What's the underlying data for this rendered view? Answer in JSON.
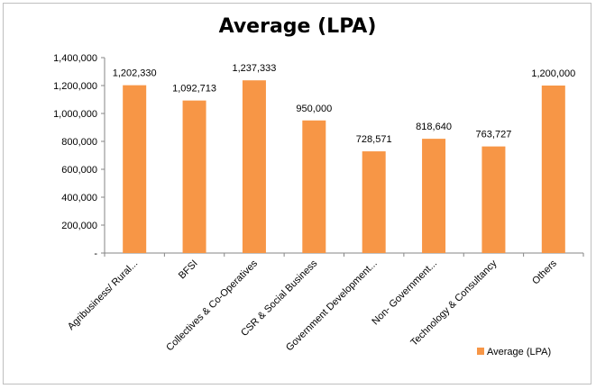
{
  "chart_data": {
    "type": "bar",
    "title": "Average (LPA)",
    "categories": [
      "Agribusiness/ Rural...",
      "BFSI",
      "Collectives & Co-Operatives",
      "CSR & Social Business",
      "Government Development...",
      "Non- Government...",
      "Technology & Consultancy",
      "Others"
    ],
    "series": [
      {
        "name": "Average (LPA)",
        "values": [
          1202330,
          1092713,
          1237333,
          950000,
          728571,
          818640,
          763727,
          1200000
        ],
        "data_labels": [
          "1,202,330",
          "1,092,713",
          "1,237,333",
          "950,000",
          "728,571",
          "818,640",
          "763,727",
          "1,200,000"
        ],
        "color": "#F79646"
      }
    ],
    "ylim": [
      0,
      1400000
    ],
    "yticks": [
      0,
      200000,
      400000,
      600000,
      800000,
      1000000,
      1200000,
      1400000
    ],
    "ytick_labels": [
      "-",
      "200,000",
      "400,000",
      "600,000",
      "800,000",
      "1,000,000",
      "1,200,000",
      "1,400,000"
    ],
    "xlabel": "",
    "ylabel": "",
    "grid": false,
    "legend_position": "bottom-right"
  }
}
